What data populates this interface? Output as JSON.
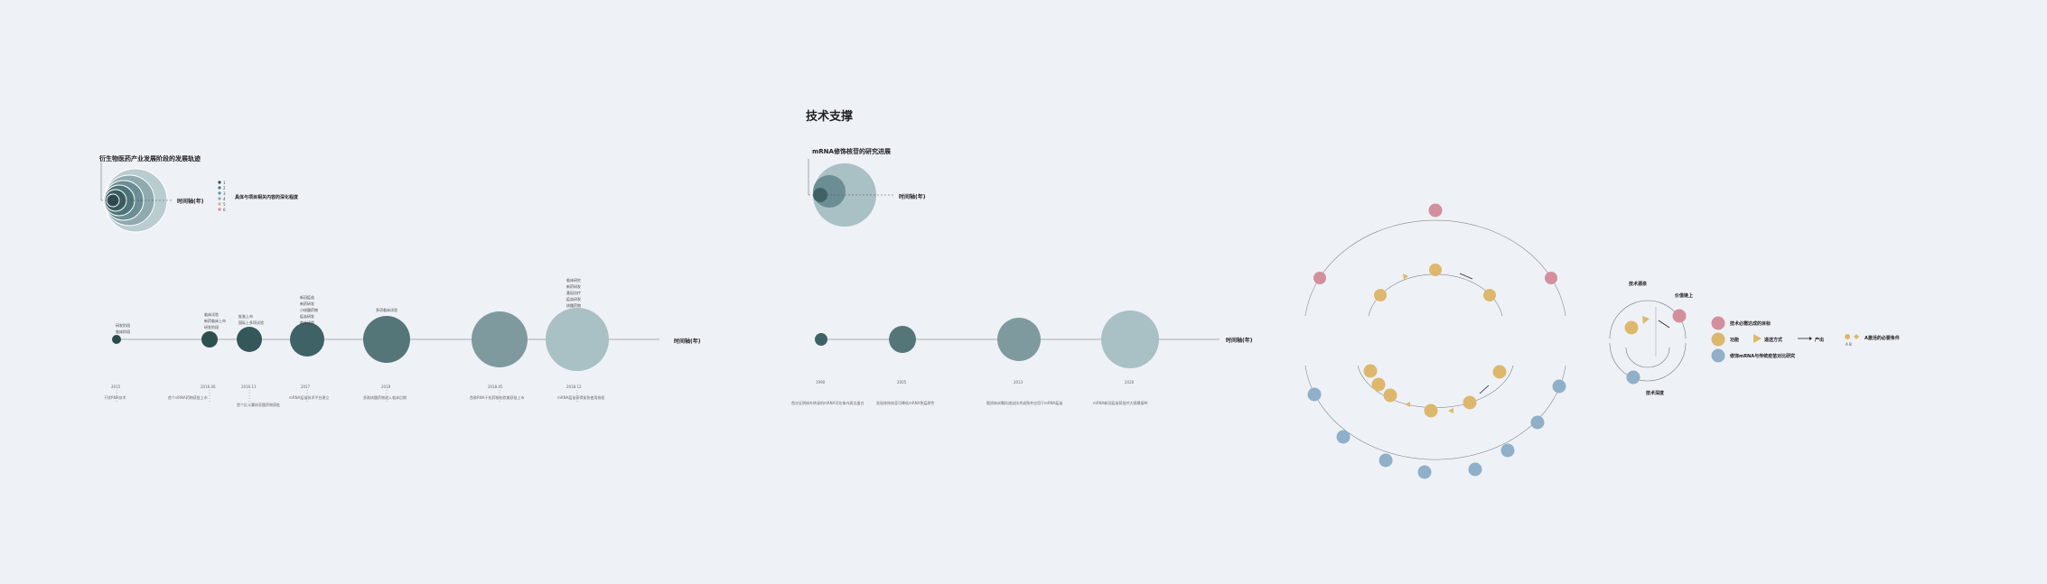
{
  "section_title": "技术支撑",
  "panel1": {
    "title": "衍生物医药产业发展阶段的发展轨迹",
    "x_axis": "时间轴(年)",
    "legend_title": "具体与项目相关内容的深化程度",
    "legend_items": [
      "1",
      "2",
      "3",
      "4",
      "5",
      "6"
    ]
  },
  "timeline1": {
    "axis_label": "时间轴(年)",
    "events": [
      {
        "year": "2015",
        "bullets": [
          "研发阶段",
          "临床阶段"
        ],
        "caption": "干扰RNA技术"
      },
      {
        "year": "2016.06",
        "bullets": [
          "临床试验",
          "新药临床上市",
          "研发阶段"
        ],
        "caption": "首个siRNA药物获批上市"
      },
      {
        "year": "2016.11",
        "bullets": [
          "批准上市",
          "国际上多项试验"
        ],
        "caption": "首个反义寡核苷酸药物获批"
      },
      {
        "year": "2017",
        "bullets": [
          "新冠疫苗",
          "新药研发",
          "小核酸药物",
          "疫苗研发",
          "临床试验"
        ],
        "caption": "mRNA疫苗技术平台建立"
      },
      {
        "year": "2018",
        "bullets": [
          "多项临床试验"
        ],
        "caption": "多款核酸药物进入临床后期"
      },
      {
        "year": "2018.05",
        "bullets": [],
        "caption": "首款RNA干扰药物在欧美获批上市"
      },
      {
        "year": "2018.12",
        "bullets": [
          "临床研究",
          "新药研发",
          "基因治疗",
          "疫苗研发",
          "核酸药物"
        ],
        "caption": "mRNA疫苗获得紧急使用授权"
      }
    ]
  },
  "panel2": {
    "title": "mRNA修饰核苷的研究进展",
    "x_axis": "时间轴(年)"
  },
  "timeline2": {
    "axis_label": "时间轴(年)",
    "events": [
      {
        "year": "1990",
        "caption": "首次证明体外转录的mRNA可在体内表达蛋白"
      },
      {
        "year": "2005",
        "caption": "发现修饰核苷可降低mRNA免疫原性"
      },
      {
        "year": "2013",
        "caption": "脂质纳米颗粒递送技术成熟并应用于mRNA疫苗"
      },
      {
        "year": "2020",
        "caption": "mRNA新冠疫苗获批并大规模接种"
      }
    ]
  },
  "legend": {
    "tech_source": "技术源泉",
    "value_chain": "价值链上",
    "tech_deep": "技术深度",
    "item_pink": "技术必需达成的目标",
    "item_yellow": "功能",
    "item_blue": "修饰mRNA与传统疫苗对比研究",
    "transmission": "递送方式",
    "output": "产出",
    "ab_label": "A激活的必要条件",
    "ab_sub": "A    B"
  },
  "colors": {
    "pink": "#d48f9c",
    "yellow": "#ddb86c",
    "blue": "#8fb0c8",
    "teal_dark": "#2f4f4f",
    "teal_light": "#a9c0c4"
  }
}
